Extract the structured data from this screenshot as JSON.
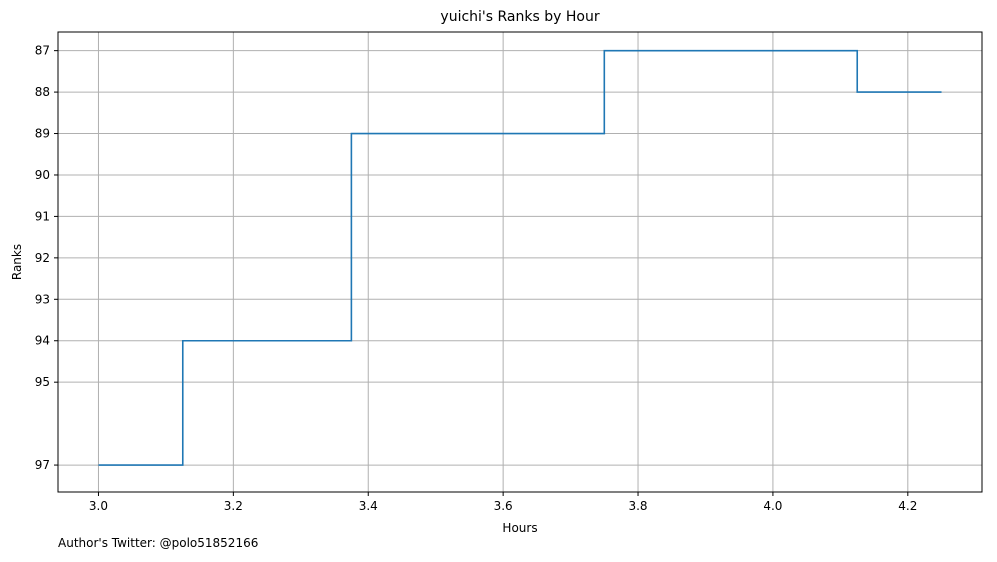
{
  "chart_data": {
    "type": "line",
    "drawstyle": "steps-post",
    "title": "yuichi's Ranks by Hour",
    "xlabel": "Hours",
    "ylabel": "Ranks",
    "xlim": [
      2.94,
      4.31
    ],
    "ylim": [
      97.65,
      86.55
    ],
    "y_inverted": true,
    "grid": true,
    "line_color": "#1f77b4",
    "x_ticks": [
      3.0,
      3.2,
      3.4,
      3.6,
      3.8,
      4.0,
      4.2
    ],
    "x_tick_labels": [
      "3.0",
      "3.2",
      "3.4",
      "3.6",
      "3.8",
      "4.0",
      "4.2"
    ],
    "y_ticks": [
      87,
      88,
      89,
      90,
      91,
      92,
      93,
      94,
      95,
      97
    ],
    "y_tick_labels": [
      "87",
      "88",
      "89",
      "90",
      "91",
      "92",
      "93",
      "94",
      "95",
      "97"
    ],
    "series": [
      {
        "x": [
          3.0,
          3.125,
          3.375,
          3.75,
          4.125,
          4.25
        ],
        "y": [
          97,
          94,
          89,
          87,
          88,
          88
        ]
      }
    ]
  },
  "footnote": "Author's Twitter: @polo51852166"
}
